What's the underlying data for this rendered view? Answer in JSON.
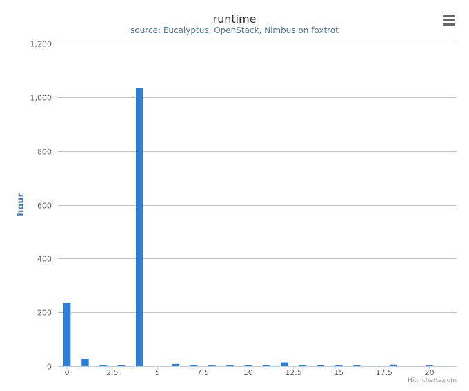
{
  "chart_data": {
    "type": "bar",
    "title": "runtime",
    "subtitle": "source: Eucalyptus, OpenStack, Nimbus on foxtrot",
    "ylabel": "hour",
    "xlabel": "",
    "x": [
      0,
      1,
      2,
      3,
      4,
      5,
      6,
      7,
      8,
      9,
      10,
      11,
      12,
      13,
      14,
      15,
      16,
      17,
      18,
      19,
      20
    ],
    "values": [
      235,
      28,
      3,
      3,
      1033,
      0,
      8,
      3,
      5,
      5,
      5,
      3,
      14,
      3,
      5,
      3,
      5,
      0,
      6,
      0,
      3
    ],
    "ylim": [
      0,
      1200
    ],
    "xlim": [
      -0.5,
      21.5
    ],
    "yticks": [
      0,
      200,
      400,
      600,
      800,
      1000,
      1200
    ],
    "ytick_labels": [
      "0",
      "200",
      "400",
      "600",
      "800",
      "1,000",
      "1,200"
    ],
    "xticks": [
      0,
      2.5,
      5,
      7.5,
      10,
      12.5,
      15,
      17.5,
      20
    ],
    "xtick_labels": [
      "0",
      "2.5",
      "5",
      "7.5",
      "10",
      "12.5",
      "15",
      "17.5",
      "20"
    ],
    "grid": true,
    "legend": "none",
    "color": "#2f7ed8"
  },
  "credits": "Highcharts.com",
  "menu_icon": "hamburger-menu-icon"
}
